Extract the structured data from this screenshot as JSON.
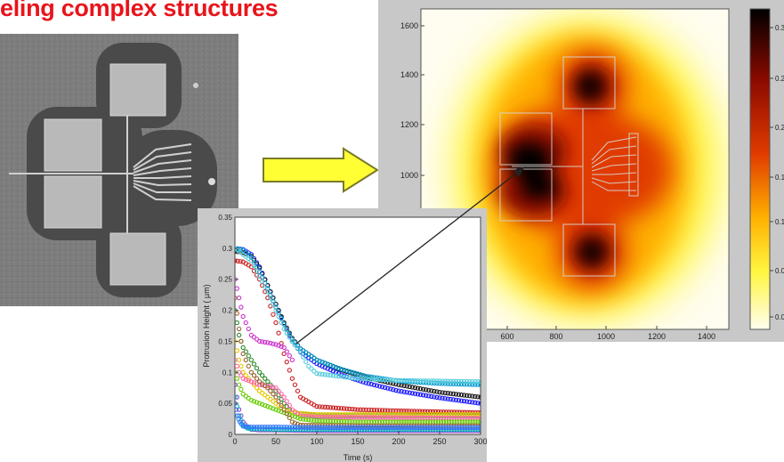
{
  "page": {
    "title": "eling complex structures",
    "title_color": "#e8141b",
    "block_arrow_color": "#ffff33"
  },
  "chart_data": [
    {
      "type": "heatmap",
      "title": "",
      "xlabel": "",
      "ylabel": "",
      "x_ticks": [
        "600",
        "800",
        "1000",
        "1200",
        "1400"
      ],
      "y_ticks": [
        "1000",
        "1200",
        "1400",
        "1600"
      ],
      "colorbar_ticks": [
        "0.3",
        "0.2",
        "0.2",
        "0.1",
        "0.1",
        "0.0",
        "0.0",
        "0"
      ],
      "colormap": [
        "#fffdf0",
        "#fff640",
        "#ffb000",
        "#e03a00",
        "#8a0a00",
        "#000000"
      ]
    },
    {
      "type": "scatter",
      "title": "",
      "xlabel": "Time (s)",
      "ylabel": "Protrusion Height ( μm)",
      "xlim": [
        0,
        300
      ],
      "ylim": [
        0,
        0.35
      ],
      "x_ticks": [
        "0",
        "50",
        "100",
        "150",
        "200",
        "250",
        "300"
      ],
      "y_ticks": [
        "0",
        "0.05",
        "0.1",
        "0.15",
        "0.2",
        "0.25",
        "0.3",
        "0.35"
      ],
      "series": [
        {
          "color": "#1a1aff",
          "points": [
            [
              0,
              0.3
            ],
            [
              10,
              0.298
            ],
            [
              20,
              0.29
            ],
            [
              30,
              0.27
            ],
            [
              40,
              0.24
            ],
            [
              50,
              0.21
            ],
            [
              60,
              0.178
            ],
            [
              70,
              0.15
            ],
            [
              80,
              0.133
            ],
            [
              100,
              0.114
            ],
            [
              130,
              0.096
            ],
            [
              160,
              0.083
            ],
            [
              200,
              0.07
            ],
            [
              250,
              0.059
            ],
            [
              300,
              0.05
            ]
          ]
        },
        {
          "color": "#1a1a1a",
          "points": [
            [
              0,
              0.295
            ],
            [
              10,
              0.293
            ],
            [
              20,
              0.287
            ],
            [
              30,
              0.268
            ],
            [
              40,
              0.24
            ],
            [
              50,
              0.21
            ],
            [
              60,
              0.18
            ],
            [
              70,
              0.155
            ],
            [
              80,
              0.138
            ],
            [
              100,
              0.12
            ],
            [
              130,
              0.104
            ],
            [
              160,
              0.092
            ],
            [
              200,
              0.08
            ],
            [
              250,
              0.068
            ],
            [
              300,
              0.06
            ]
          ]
        },
        {
          "color": "#0099cc",
          "points": [
            [
              0,
              0.3
            ],
            [
              10,
              0.297
            ],
            [
              20,
              0.285
            ],
            [
              30,
              0.262
            ],
            [
              40,
              0.235
            ],
            [
              50,
              0.205
            ],
            [
              60,
              0.178
            ],
            [
              70,
              0.153
            ],
            [
              80,
              0.138
            ],
            [
              100,
              0.12
            ],
            [
              130,
              0.105
            ],
            [
              160,
              0.094
            ],
            [
              200,
              0.086
            ],
            [
              250,
              0.082
            ],
            [
              300,
              0.08
            ]
          ]
        },
        {
          "color": "#cc2222",
          "points": [
            [
              0,
              0.28
            ],
            [
              10,
              0.278
            ],
            [
              20,
              0.27
            ],
            [
              30,
              0.25
            ],
            [
              40,
              0.22
            ],
            [
              50,
              0.18
            ],
            [
              60,
              0.13
            ],
            [
              70,
              0.09
            ],
            [
              80,
              0.06
            ],
            [
              100,
              0.045
            ],
            [
              150,
              0.04
            ],
            [
              200,
              0.038
            ],
            [
              300,
              0.035
            ]
          ]
        },
        {
          "color": "#55ccdd",
          "points": [
            [
              0,
              0.3
            ],
            [
              20,
              0.28
            ],
            [
              40,
              0.23
            ],
            [
              60,
              0.17
            ],
            [
              70,
              0.15
            ],
            [
              80,
              0.132
            ],
            [
              90,
              0.11
            ],
            [
              100,
              0.098
            ],
            [
              150,
              0.09
            ],
            [
              200,
              0.087
            ],
            [
              250,
              0.086
            ],
            [
              300,
              0.085
            ]
          ]
        },
        {
          "color": "#cc33cc",
          "points": [
            [
              0,
              0.25
            ],
            [
              5,
              0.22
            ],
            [
              10,
              0.19
            ],
            [
              20,
              0.16
            ],
            [
              30,
              0.15
            ],
            [
              40,
              0.148
            ],
            [
              50,
              0.145
            ],
            [
              60,
              0.14
            ],
            [
              70,
              0.12
            ]
          ]
        },
        {
          "color": "#2e8b2e",
          "points": [
            [
              0,
              0.2
            ],
            [
              5,
              0.16
            ],
            [
              10,
              0.14
            ],
            [
              20,
              0.12
            ],
            [
              30,
              0.1
            ],
            [
              40,
              0.085
            ],
            [
              50,
              0.07
            ],
            [
              60,
              0.05
            ],
            [
              70,
              0.035
            ],
            [
              100,
              0.03
            ],
            [
              150,
              0.03
            ],
            [
              200,
              0.03
            ],
            [
              300,
              0.03
            ]
          ]
        },
        {
          "color": "#e8c800",
          "points": [
            [
              0,
              0.15
            ],
            [
              5,
              0.12
            ],
            [
              10,
              0.1
            ],
            [
              20,
              0.085
            ],
            [
              30,
              0.07
            ],
            [
              40,
              0.06
            ],
            [
              50,
              0.05
            ],
            [
              60,
              0.04
            ],
            [
              70,
              0.035
            ],
            [
              100,
              0.032
            ],
            [
              150,
              0.032
            ],
            [
              200,
              0.032
            ],
            [
              300,
              0.032
            ]
          ]
        },
        {
          "color": "#ff66aa",
          "points": [
            [
              0,
              0.12
            ],
            [
              5,
              0.1
            ],
            [
              10,
              0.09
            ],
            [
              20,
              0.085
            ],
            [
              30,
              0.08
            ],
            [
              40,
              0.078
            ],
            [
              50,
              0.075
            ],
            [
              60,
              0.06
            ],
            [
              70,
              0.04
            ],
            [
              80,
              0.03
            ],
            [
              100,
              0.028
            ],
            [
              200,
              0.027
            ],
            [
              300,
              0.026
            ]
          ]
        },
        {
          "color": "#66cc00",
          "points": [
            [
              0,
              0.1
            ],
            [
              5,
              0.08
            ],
            [
              10,
              0.065
            ],
            [
              20,
              0.055
            ],
            [
              30,
              0.05
            ],
            [
              40,
              0.045
            ],
            [
              50,
              0.04
            ],
            [
              60,
              0.035
            ],
            [
              70,
              0.03
            ],
            [
              80,
              0.025
            ],
            [
              100,
              0.022
            ],
            [
              150,
              0.02
            ],
            [
              200,
              0.02
            ],
            [
              300,
              0.02
            ]
          ]
        },
        {
          "color": "#8844cc",
          "points": [
            [
              0,
              0.08
            ],
            [
              5,
              0.04
            ],
            [
              10,
              0.02
            ],
            [
              15,
              0.012
            ],
            [
              20,
              0.008
            ],
            [
              30,
              0.007
            ],
            [
              50,
              0.007
            ],
            [
              100,
              0.006
            ],
            [
              200,
              0.006
            ],
            [
              300,
              0.006
            ]
          ]
        },
        {
          "color": "#00bbbb",
          "points": [
            [
              0,
              0.06
            ],
            [
              5,
              0.03
            ],
            [
              10,
              0.015
            ],
            [
              15,
              0.01
            ],
            [
              20,
              0.009
            ],
            [
              30,
              0.009
            ],
            [
              50,
              0.008
            ],
            [
              100,
              0.008
            ],
            [
              200,
              0.008
            ],
            [
              300,
              0.008
            ]
          ]
        },
        {
          "color": "#996633",
          "points": [
            [
              0,
              0.22
            ],
            [
              5,
              0.17
            ],
            [
              10,
              0.13
            ],
            [
              20,
              0.1
            ],
            [
              30,
              0.085
            ],
            [
              40,
              0.075
            ],
            [
              50,
              0.06
            ],
            [
              60,
              0.04
            ],
            [
              70,
              0.02
            ],
            [
              80,
              0.015
            ],
            [
              150,
              0.014
            ],
            [
              300,
              0.014
            ]
          ]
        },
        {
          "color": "#3377ff",
          "points": [
            [
              0,
              0.05
            ],
            [
              3,
              0.03
            ],
            [
              6,
              0.02
            ],
            [
              10,
              0.013
            ],
            [
              20,
              0.012
            ],
            [
              50,
              0.012
            ],
            [
              100,
              0.011
            ],
            [
              200,
              0.011
            ],
            [
              300,
              0.011
            ]
          ]
        }
      ]
    }
  ]
}
